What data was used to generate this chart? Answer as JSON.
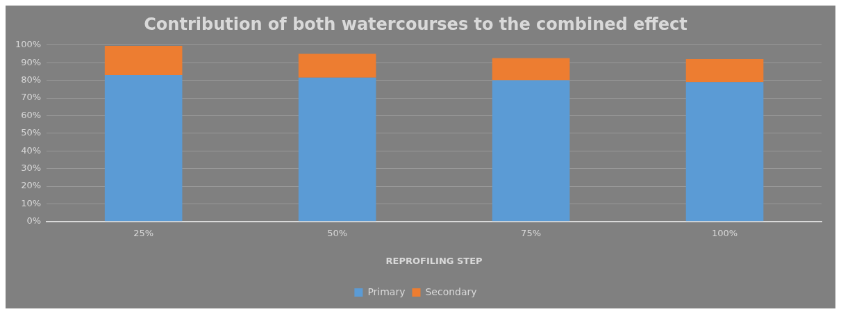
{
  "chart_data": {
    "type": "bar",
    "title": "Contribution of both watercourses to the combined effect",
    "xlabel": "REPROFILING STEP",
    "categories": [
      "25%",
      "50%",
      "75%",
      "100%"
    ],
    "stacked": true,
    "series": [
      {
        "name": "Primary",
        "color": "#5b9bd5",
        "values": [
          83,
          81.5,
          80,
          79
        ]
      },
      {
        "name": "Secondary",
        "color": "#ed7d31",
        "values": [
          16.5,
          13.5,
          12.5,
          13
        ]
      }
    ],
    "ylim": [
      0,
      100
    ],
    "yticks": [
      {
        "value": 0,
        "label": "0%"
      },
      {
        "value": 10,
        "label": "10%"
      },
      {
        "value": 20,
        "label": "20%"
      },
      {
        "value": 30,
        "label": "30%"
      },
      {
        "value": 40,
        "label": "40%"
      },
      {
        "value": 50,
        "label": "50%"
      },
      {
        "value": 60,
        "label": "60%"
      },
      {
        "value": 70,
        "label": "70%"
      },
      {
        "value": 80,
        "label": "80%"
      },
      {
        "value": 90,
        "label": "90%"
      },
      {
        "value": 100,
        "label": "100%"
      }
    ],
    "grid": "y",
    "legend": "bottom"
  }
}
